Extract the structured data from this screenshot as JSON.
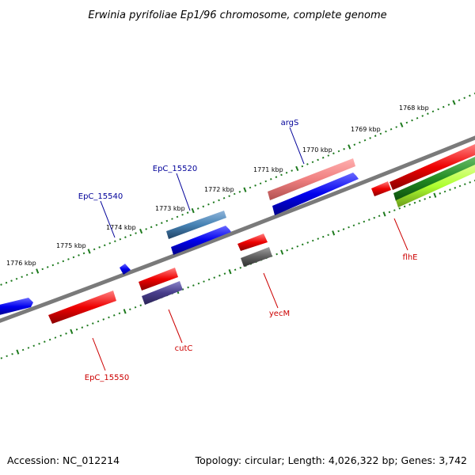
{
  "title": "Erwinia pyrifoliae Ep1/96 chromosome, complete genome",
  "footer": {
    "accession": "Accession: NC_012214",
    "summary": "Topology: circular; Length: 4,026,322 bp; Genes: 3,742"
  },
  "scale": {
    "ticks": [
      "1776 kbp",
      "1775 kbp",
      "1774 kbp",
      "1773 kbp",
      "1772 kbp",
      "1771 kbp",
      "1770 kbp",
      "1769 kbp",
      "1768 kbp"
    ]
  },
  "genes": [
    {
      "label": "argS",
      "color": "#000099"
    },
    {
      "label": "EpC_15520",
      "color": "#000099"
    },
    {
      "label": "EpC_15540",
      "color": "#000099"
    },
    {
      "label": "yecM",
      "color": "#cc0000"
    },
    {
      "label": "flhE",
      "color": "#cc0000"
    },
    {
      "label": "cutC",
      "color": "#cc0000"
    },
    {
      "label": "EpC_15550",
      "color": "#cc0000"
    }
  ],
  "colors": {
    "backbone": "#7a7a7a",
    "ticks": "#1e7a1e",
    "forward_cds": "#0000ee",
    "reverse_cds": "#ee0000"
  }
}
